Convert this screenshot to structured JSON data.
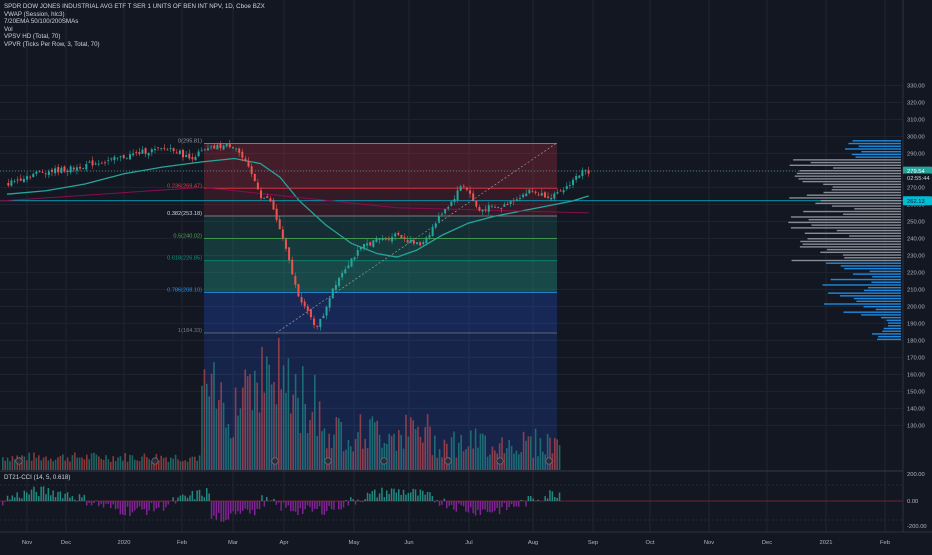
{
  "legend": {
    "symbol_line": "SPDR DOW JONES INDUSTRIAL AVG ETF T SER 1 UNITS OF BEN INT NPV, 1D, Cboe BZX",
    "indicators": [
      "VWAP (Session, hlc3)",
      "7/20EMA 50/100/200SMAs",
      "Vol",
      "VPSV HD (Total, 70)",
      "VPVR (Ticks Per Row, 3, Total, 70)"
    ]
  },
  "oscillator_label": "DT21-CCI (14, 5, 0.618)",
  "colors": {
    "background": "#131722",
    "grid": "#1f2430",
    "up": "#26a69a",
    "down": "#ef5350",
    "fib_red": "#f23645",
    "fib_green": "#22ab94",
    "fib_blue": "#2962ff",
    "vp_blue": "#2196f3",
    "vp_gray": "#9598a1",
    "teal_line": "#26a69a",
    "maroon_line": "#880e4f"
  },
  "chart_data": {
    "type": "candlestick",
    "title": "SPDR DOW JONES INDUSTRIAL AVG ETF T SER 1 UNITS OF BEN INT NPV, 1D, Cboe BZX",
    "price_axis": {
      "ticks": [
        330,
        320,
        310,
        300,
        290,
        280,
        270,
        260,
        250,
        240,
        230,
        220,
        210,
        200,
        190,
        180,
        170,
        160,
        150,
        140,
        130
      ],
      "range": [
        125,
        336
      ]
    },
    "time_axis": {
      "labels": [
        "Nov",
        "Dec",
        "2020",
        "Feb",
        "Mar",
        "Apr",
        "May",
        "Jun",
        "Jul",
        "Aug",
        "Sep",
        "Oct",
        "Nov",
        "Dec",
        "2021",
        "Feb"
      ]
    },
    "price_path": [
      {
        "x": 0.0,
        "y": 272
      },
      {
        "x": 0.25,
        "y": 276
      },
      {
        "x": 0.5,
        "y": 279
      },
      {
        "x": 0.75,
        "y": 280
      },
      {
        "x": 1.0,
        "y": 281
      },
      {
        "x": 1.3,
        "y": 284
      },
      {
        "x": 1.6,
        "y": 286
      },
      {
        "x": 1.9,
        "y": 289
      },
      {
        "x": 2.1,
        "y": 291
      },
      {
        "x": 2.3,
        "y": 292
      },
      {
        "x": 2.55,
        "y": 293
      },
      {
        "x": 2.8,
        "y": 287
      },
      {
        "x": 3.0,
        "y": 291
      },
      {
        "x": 3.25,
        "y": 294
      },
      {
        "x": 3.5,
        "y": 295
      },
      {
        "x": 3.7,
        "y": 282
      },
      {
        "x": 3.85,
        "y": 271
      },
      {
        "x": 3.9,
        "y": 265
      },
      {
        "x": 4.05,
        "y": 262
      },
      {
        "x": 4.2,
        "y": 245
      },
      {
        "x": 4.35,
        "y": 225
      },
      {
        "x": 4.45,
        "y": 210
      },
      {
        "x": 4.6,
        "y": 198
      },
      {
        "x": 4.75,
        "y": 188
      },
      {
        "x": 4.85,
        "y": 193
      },
      {
        "x": 5.0,
        "y": 210
      },
      {
        "x": 5.15,
        "y": 220
      },
      {
        "x": 5.3,
        "y": 228
      },
      {
        "x": 5.5,
        "y": 236
      },
      {
        "x": 5.7,
        "y": 239
      },
      {
        "x": 5.85,
        "y": 240
      },
      {
        "x": 6.0,
        "y": 243
      },
      {
        "x": 6.2,
        "y": 238
      },
      {
        "x": 6.35,
        "y": 236
      },
      {
        "x": 6.5,
        "y": 243
      },
      {
        "x": 6.7,
        "y": 256
      },
      {
        "x": 6.85,
        "y": 262
      },
      {
        "x": 7.0,
        "y": 272
      },
      {
        "x": 7.1,
        "y": 268
      },
      {
        "x": 7.25,
        "y": 256
      },
      {
        "x": 7.4,
        "y": 258
      },
      {
        "x": 7.6,
        "y": 258
      },
      {
        "x": 7.75,
        "y": 262
      },
      {
        "x": 7.9,
        "y": 265
      },
      {
        "x": 8.05,
        "y": 268
      },
      {
        "x": 8.2,
        "y": 266
      },
      {
        "x": 8.35,
        "y": 265
      },
      {
        "x": 8.5,
        "y": 266
      },
      {
        "x": 8.6,
        "y": 270
      },
      {
        "x": 8.75,
        "y": 276
      },
      {
        "x": 8.85,
        "y": 279
      },
      {
        "x": 8.95,
        "y": 279.54
      }
    ],
    "moving_average": [
      {
        "x": 0.0,
        "y": 266
      },
      {
        "x": 0.6,
        "y": 268
      },
      {
        "x": 1.2,
        "y": 272
      },
      {
        "x": 1.8,
        "y": 278
      },
      {
        "x": 2.4,
        "y": 282
      },
      {
        "x": 3.0,
        "y": 285
      },
      {
        "x": 3.5,
        "y": 287
      },
      {
        "x": 3.9,
        "y": 284
      },
      {
        "x": 4.2,
        "y": 276
      },
      {
        "x": 4.5,
        "y": 262
      },
      {
        "x": 4.9,
        "y": 248
      },
      {
        "x": 5.3,
        "y": 237
      },
      {
        "x": 5.7,
        "y": 231
      },
      {
        "x": 6.0,
        "y": 229
      },
      {
        "x": 6.3,
        "y": 233
      },
      {
        "x": 6.7,
        "y": 242
      },
      {
        "x": 7.1,
        "y": 249
      },
      {
        "x": 7.5,
        "y": 253
      },
      {
        "x": 7.9,
        "y": 256
      },
      {
        "x": 8.3,
        "y": 259
      },
      {
        "x": 8.7,
        "y": 262
      },
      {
        "x": 8.95,
        "y": 265
      }
    ],
    "fibonacci": {
      "levels": [
        {
          "label": "1(184.33)",
          "value": 184.33
        },
        {
          "label": "0.786(208.10)",
          "value": 208.1
        },
        {
          "label": "0.618(226.85)",
          "value": 226.85
        },
        {
          "label": "0.5(240.02)",
          "value": 240.02
        },
        {
          "label": "0.382(253.18)",
          "value": 253.18
        },
        {
          "label": "0.236(269.47)",
          "value": 269.47
        },
        {
          "label": "0(295.81)",
          "value": 295.81
        }
      ]
    },
    "price_labels": [
      {
        "text": "279.54",
        "value": 279.54
      },
      {
        "text": "02:55:44",
        "value": 275.5
      },
      {
        "text": "262.13",
        "value": 262.13
      }
    ],
    "oscillator_axis": {
      "ticks": [
        "200.00",
        "0.00",
        "-200.00"
      ]
    }
  }
}
